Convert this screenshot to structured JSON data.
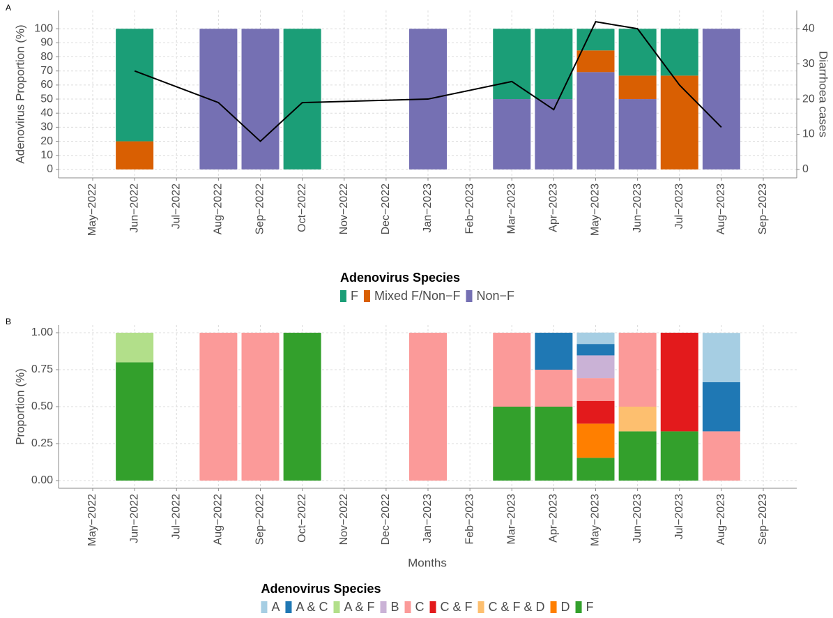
{
  "chart_data": [
    {
      "type": "bar",
      "panel": "A",
      "categories": [
        "May−2022",
        "Jun−2022",
        "Jul−2022",
        "Aug−2022",
        "Sep−2022",
        "Oct−2022",
        "Nov−2022",
        "Dec−2022",
        "Jan−2023",
        "Feb−2023",
        "Mar−2023",
        "Apr−2023",
        "May−2023",
        "Jun−2023",
        "Jul−2023",
        "Aug−2023",
        "Sep−2023"
      ],
      "y_label": "Adenovirus Proportion (%)",
      "y2_label": "Diarrhoea cases",
      "legend_title": "Adenovirus Species",
      "series": [
        {
          "name": "F",
          "color": "#1b9e77",
          "values": [
            null,
            80,
            null,
            null,
            null,
            100,
            null,
            null,
            null,
            null,
            50,
            50,
            15.4,
            33.3,
            33.3,
            null,
            null
          ]
        },
        {
          "name": "Mixed F/Non−F",
          "color": "#d95f02",
          "values": [
            null,
            20,
            null,
            null,
            null,
            null,
            null,
            null,
            null,
            null,
            null,
            null,
            15.4,
            16.7,
            66.7,
            null,
            null
          ]
        },
        {
          "name": "Non−F",
          "color": "#7570b3",
          "values": [
            null,
            null,
            null,
            100,
            100,
            null,
            null,
            null,
            100,
            null,
            50,
            50,
            69.2,
            50,
            null,
            100,
            null
          ]
        }
      ],
      "line": {
        "axis": "y2",
        "color": "#000000",
        "categories": [
          "Jun−2022",
          "Aug−2022",
          "Sep−2022",
          "Oct−2022",
          "Jan−2023",
          "Mar−2023",
          "Apr−2023",
          "May−2023",
          "Jun−2023",
          "Jul−2023",
          "Aug−2023"
        ],
        "values": [
          28,
          19,
          8,
          19,
          20,
          25,
          17,
          42,
          40,
          24,
          12
        ]
      },
      "ylim": [
        -6,
        113
      ],
      "yticks": [
        0,
        10,
        20,
        30,
        40,
        50,
        60,
        70,
        80,
        90,
        100
      ],
      "y2lim": [
        -2.4,
        45.2
      ],
      "y2ticks": [
        0,
        10,
        20,
        30,
        40
      ],
      "grid": true
    },
    {
      "type": "bar",
      "panel": "B",
      "categories": [
        "May−2022",
        "Jun−2022",
        "Jul−2022",
        "Aug−2022",
        "Sep−2022",
        "Oct−2022",
        "Nov−2022",
        "Dec−2022",
        "Jan−2023",
        "Feb−2023",
        "Mar−2023",
        "Apr−2023",
        "May−2023",
        "Jun−2023",
        "Jul−2023",
        "Aug−2023",
        "Sep−2023"
      ],
      "y_label": "Proportion (%)",
      "x_label": "Months",
      "legend_title": "Adenovirus Species",
      "series": [
        {
          "name": "A",
          "color": "#a6cee3",
          "values": [
            null,
            null,
            null,
            null,
            null,
            null,
            null,
            null,
            null,
            null,
            null,
            null,
            0.077,
            null,
            null,
            0.333,
            null
          ]
        },
        {
          "name": "A & C",
          "color": "#1f78b4",
          "values": [
            null,
            null,
            null,
            null,
            null,
            null,
            null,
            null,
            null,
            null,
            null,
            0.25,
            0.077,
            null,
            null,
            0.333,
            null
          ]
        },
        {
          "name": "A & F",
          "color": "#b2df8a",
          "values": [
            null,
            0.2,
            null,
            null,
            null,
            null,
            null,
            null,
            null,
            null,
            null,
            null,
            null,
            null,
            null,
            null,
            null
          ]
        },
        {
          "name": "B",
          "color": "#cab2d6",
          "values": [
            null,
            null,
            null,
            null,
            null,
            null,
            null,
            null,
            null,
            null,
            null,
            null,
            0.154,
            null,
            null,
            null,
            null
          ]
        },
        {
          "name": "C",
          "color": "#fb9a99",
          "values": [
            null,
            null,
            null,
            1,
            1,
            null,
            null,
            null,
            1,
            null,
            0.5,
            0.25,
            0.154,
            0.5,
            null,
            0.333,
            null
          ]
        },
        {
          "name": "C & F",
          "color": "#e31a1c",
          "values": [
            null,
            null,
            null,
            null,
            null,
            null,
            null,
            null,
            null,
            null,
            null,
            null,
            0.154,
            null,
            0.667,
            null,
            null
          ]
        },
        {
          "name": "C & F & D",
          "color": "#fdbf6f",
          "values": [
            null,
            null,
            null,
            null,
            null,
            null,
            null,
            null,
            null,
            null,
            null,
            null,
            null,
            0.167,
            null,
            null,
            null
          ]
        },
        {
          "name": "D",
          "color": "#ff7f00",
          "values": [
            null,
            null,
            null,
            null,
            null,
            null,
            null,
            null,
            null,
            null,
            null,
            null,
            0.231,
            null,
            null,
            null,
            null
          ]
        },
        {
          "name": "F",
          "color": "#33a02c",
          "values": [
            null,
            0.8,
            null,
            null,
            null,
            1,
            null,
            null,
            null,
            null,
            0.5,
            0.5,
            0.154,
            0.333,
            0.333,
            null,
            null
          ]
        }
      ],
      "ylim": [
        -0.052,
        1.052
      ],
      "yticks": [
        {
          "value": 0,
          "label": "0.00"
        },
        {
          "value": 0.25,
          "label": "0.25"
        },
        {
          "value": 0.5,
          "label": "0.50"
        },
        {
          "value": 0.75,
          "label": "0.75"
        },
        {
          "value": 1,
          "label": "1.00"
        }
      ],
      "grid": true
    }
  ]
}
